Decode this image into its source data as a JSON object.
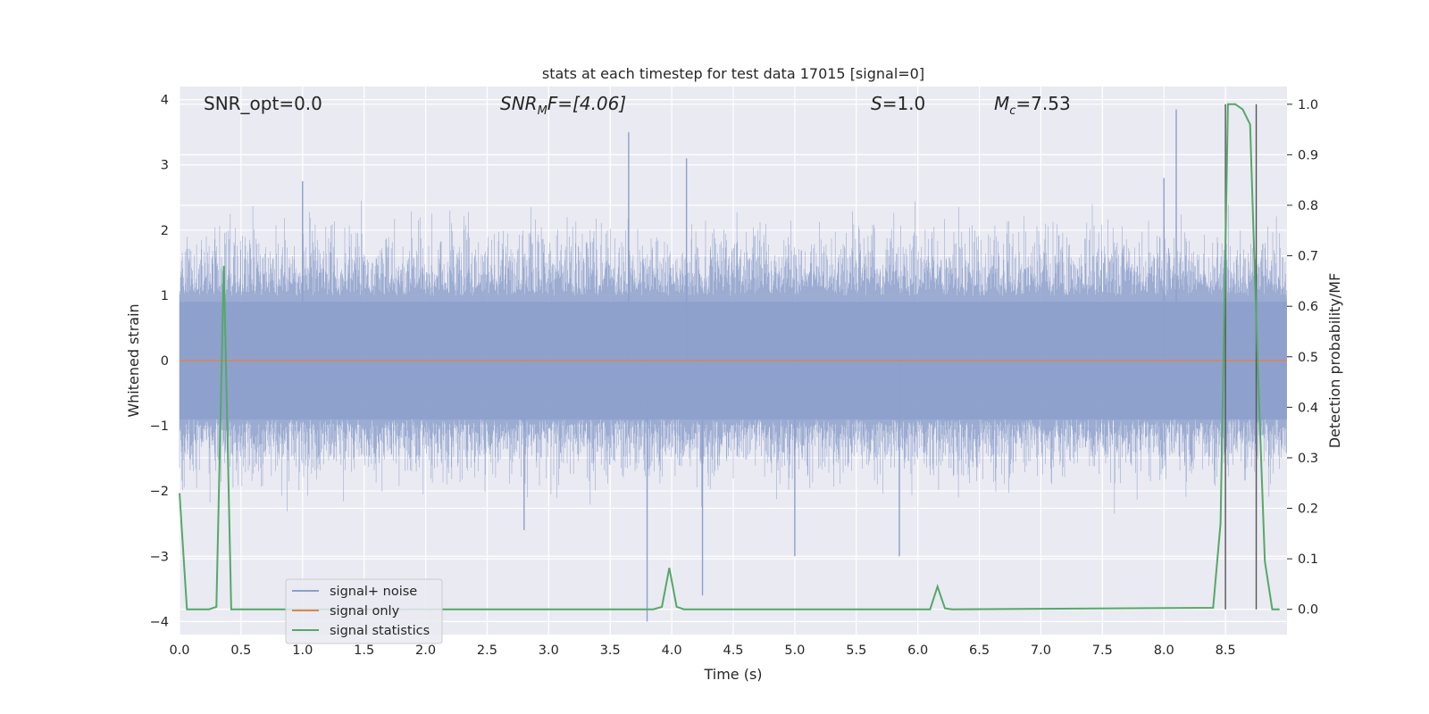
{
  "chart_data": {
    "type": "line",
    "title": "stats at each timestep for test data 17015 [signal=0]",
    "xlabel": "Time (s)",
    "ylabel": "Whitened strain",
    "ylabel_right": "Detection probability/MF",
    "xlim": [
      0.0,
      9.0
    ],
    "ylim": [
      -4.2,
      4.2
    ],
    "ylim_right": [
      -0.05,
      1.035
    ],
    "x_ticks": [
      "0.0",
      "0.5",
      "1.0",
      "1.5",
      "2.0",
      "2.5",
      "3.0",
      "3.5",
      "4.0",
      "4.5",
      "5.0",
      "5.5",
      "6.0",
      "6.5",
      "7.0",
      "7.5",
      "8.0",
      "8.5"
    ],
    "y_ticks": [
      "4",
      "3",
      "2",
      "1",
      "0",
      "−1",
      "−2",
      "−3",
      "−4"
    ],
    "y_ticks_right": [
      "1.0",
      "0.9",
      "0.8",
      "0.7",
      "0.6",
      "0.5",
      "0.4",
      "0.3",
      "0.2",
      "0.1",
      "0.0"
    ],
    "grid": true,
    "annotations": {
      "snr_opt": "SNR_opt=0.0",
      "snr_mf_main": "SNR",
      "snr_mf_sub": "M",
      "snr_mf_rest": "F=[4.06]",
      "s_main": "S",
      "s_rest": "=1.0",
      "mc_main": "M",
      "mc_sub": "c",
      "mc_rest": "=7.53"
    },
    "series": [
      {
        "name": "signal+ noise",
        "color": "#8da0cb",
        "description": "whitened strain noise, roughly within [-2, 2.5], peaks to about 3.9 and -4",
        "spikes": [
          [
            3.65,
            3.5
          ],
          [
            4.12,
            3.1
          ],
          [
            8.1,
            3.85
          ],
          [
            8.0,
            2.8
          ],
          [
            1.0,
            2.75
          ],
          [
            3.8,
            -4.0
          ],
          [
            4.25,
            -3.6
          ],
          [
            5.0,
            -3.0
          ],
          [
            5.85,
            -3.0
          ],
          [
            2.8,
            -2.6
          ]
        ]
      },
      {
        "name": "signal only",
        "color": "#dd8452",
        "x": [
          0.0,
          9.0
        ],
        "y": [
          0.0,
          0.0
        ]
      },
      {
        "name": "signal statistics",
        "color": "#55a868",
        "axis": "right",
        "x": [
          0.0,
          0.06,
          0.12,
          0.18,
          0.24,
          0.3,
          0.36,
          0.42,
          0.48,
          3.85,
          3.92,
          3.98,
          4.04,
          4.1,
          6.1,
          6.16,
          6.22,
          6.28,
          8.4,
          8.46,
          8.52,
          8.58,
          8.64,
          8.7,
          8.76,
          8.82,
          8.88,
          8.94
        ],
        "y": [
          0.23,
          0.0,
          0.0,
          0.0,
          0.0,
          0.005,
          0.68,
          0.0,
          0.0,
          0.0,
          0.005,
          0.082,
          0.005,
          0.0,
          0.0,
          0.045,
          0.002,
          0.0,
          0.003,
          0.17,
          1.0,
          1.0,
          0.99,
          0.96,
          0.5,
          0.095,
          0.0,
          0.0
        ]
      }
    ],
    "vlines": [
      {
        "x": 8.5,
        "color": "#555555"
      },
      {
        "x": 8.75,
        "color": "#555555"
      }
    ],
    "legend": {
      "placement": "lower-left",
      "entries": [
        {
          "label": "signal+ noise",
          "color": "#8da0cb"
        },
        {
          "label": "signal only",
          "color": "#dd8452"
        },
        {
          "label": "signal statistics",
          "color": "#55a868"
        }
      ]
    }
  }
}
